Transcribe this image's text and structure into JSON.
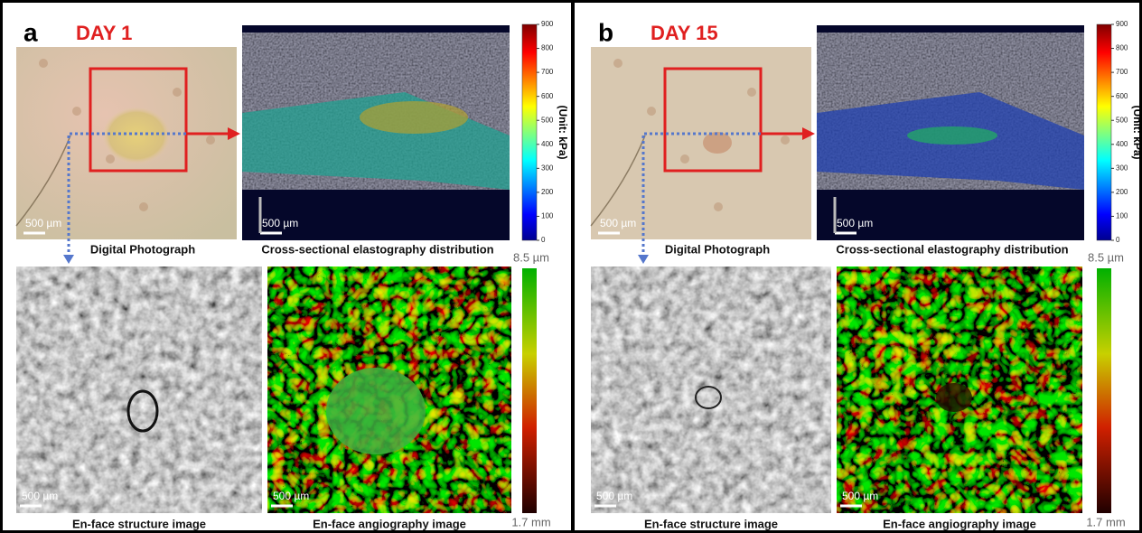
{
  "panels": [
    {
      "letter": "a",
      "day": "DAY 1",
      "photo_caption": "Digital Photograph",
      "photo_scale": "500 µm",
      "cross_caption": "Cross-sectional elastography distribution",
      "cross_scale": "500 µm",
      "colorbar_label": "(Unit: kPa)",
      "colorbar_ticks": [
        0,
        100,
        200,
        300,
        400,
        500,
        600,
        700,
        800,
        900
      ],
      "structure_caption": "En-face structure image",
      "structure_scale": "500 µm",
      "angio_caption": "En-face angiography image",
      "angio_scale": "500 µm",
      "depth_top": "8.5 µm",
      "depth_bottom": "1.7 mm"
    },
    {
      "letter": "b",
      "day": "DAY 15",
      "photo_caption": "Digital Photograph",
      "photo_scale": "500 µm",
      "cross_caption": "Cross-sectional elastography distribution",
      "cross_scale": "500 µm",
      "colorbar_label": "(Unit: kPa)",
      "colorbar_ticks": [
        0,
        100,
        200,
        300,
        400,
        500,
        600,
        700,
        800,
        900
      ],
      "structure_caption": "En-face structure image",
      "structure_scale": "500 µm",
      "angio_caption": "En-face angiography image",
      "angio_scale": "500 µm",
      "depth_top": "8.5 µm",
      "depth_bottom": "1.7 mm"
    }
  ]
}
